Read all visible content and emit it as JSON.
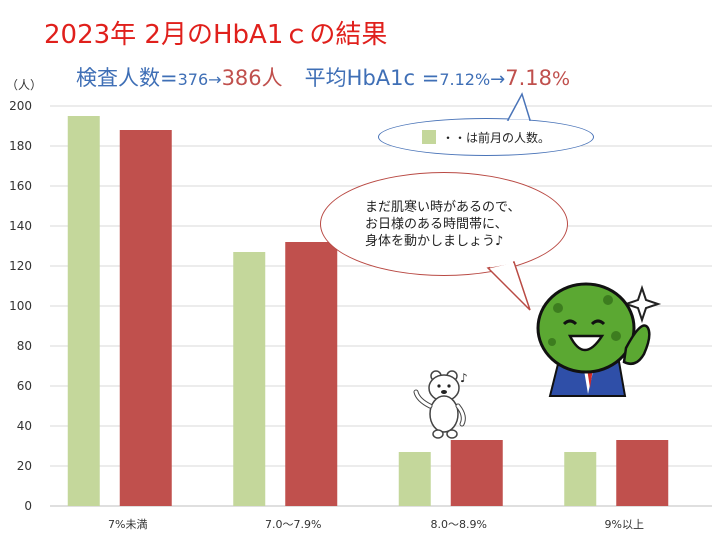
{
  "header": {
    "title": "2023年 2月のHbA1ｃの結果",
    "count_label": "検査人数=",
    "count_prev": "376→",
    "count_curr": "386人",
    "avg_label": "平均HbA1c =",
    "avg_prev": "7.12%",
    "avg_arrow": "→",
    "avg_curr": "7.18",
    "avg_unit": "%"
  },
  "legend_note": {
    "text": "・・は前月の人数。"
  },
  "speech": {
    "lines": [
      "まだ肌寒い時があるので、",
      "お日様のある時間帯に、",
      "身体を動かしましょう♪"
    ]
  },
  "chart_data": {
    "type": "bar",
    "ylabel": "（人）",
    "ylim": [
      0,
      200
    ],
    "yticks": [
      0,
      20,
      40,
      60,
      80,
      100,
      120,
      140,
      160,
      180,
      200
    ],
    "categories": [
      "7%未満",
      "7.0〜7.9%",
      "8.0〜8.9%",
      "9%以上"
    ],
    "series": [
      {
        "values": [
          195,
          127,
          27,
          27
        ],
        "color": "#c4d79b"
      },
      {
        "values": [
          188,
          132,
          33,
          33
        ],
        "color": "#c0504d"
      }
    ],
    "grid": true
  },
  "icons": {
    "mascot": "green-ball-mascot-icon",
    "bear": "polar-bear-icon",
    "music": "music-note-icon",
    "sparkle": "sparkle-icon"
  }
}
